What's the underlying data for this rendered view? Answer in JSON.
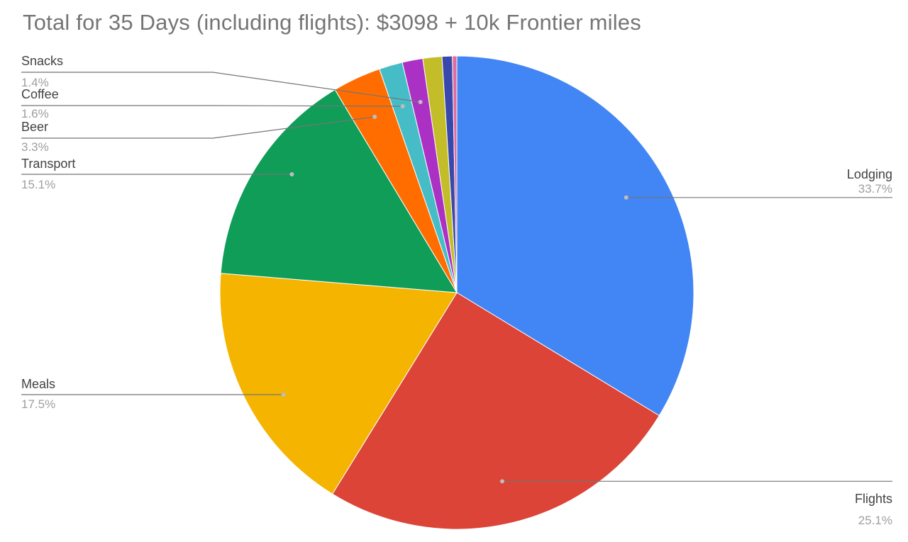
{
  "chart_data": {
    "type": "pie",
    "title": "Total for 35 Days (including flights): $3098 + 10k Frontier miles",
    "slices": [
      {
        "label": "Lodging",
        "value": 33.7,
        "color": "#4285f4",
        "labeled": true
      },
      {
        "label": "Flights",
        "value": 25.1,
        "color": "#db4437",
        "labeled": true
      },
      {
        "label": "Meals",
        "value": 17.5,
        "color": "#f4b400",
        "labeled": true
      },
      {
        "label": "Transport",
        "value": 15.1,
        "color": "#0f9d58",
        "labeled": true
      },
      {
        "label": "Beer",
        "value": 3.3,
        "color": "#ff6d01",
        "labeled": true
      },
      {
        "label": "Coffee",
        "value": 1.6,
        "color": "#46bdc6",
        "labeled": true
      },
      {
        "label": "Snacks",
        "value": 1.4,
        "color": "#ab30c4",
        "labeled": true
      },
      {
        "label": "",
        "value": 1.3,
        "color": "#c2bd28",
        "labeled": false
      },
      {
        "label": "",
        "value": 0.7,
        "color": "#3949ab",
        "labeled": false
      },
      {
        "label": "",
        "value": 0.3,
        "color": "#e06c9f",
        "labeled": false
      }
    ],
    "legend": "none"
  }
}
